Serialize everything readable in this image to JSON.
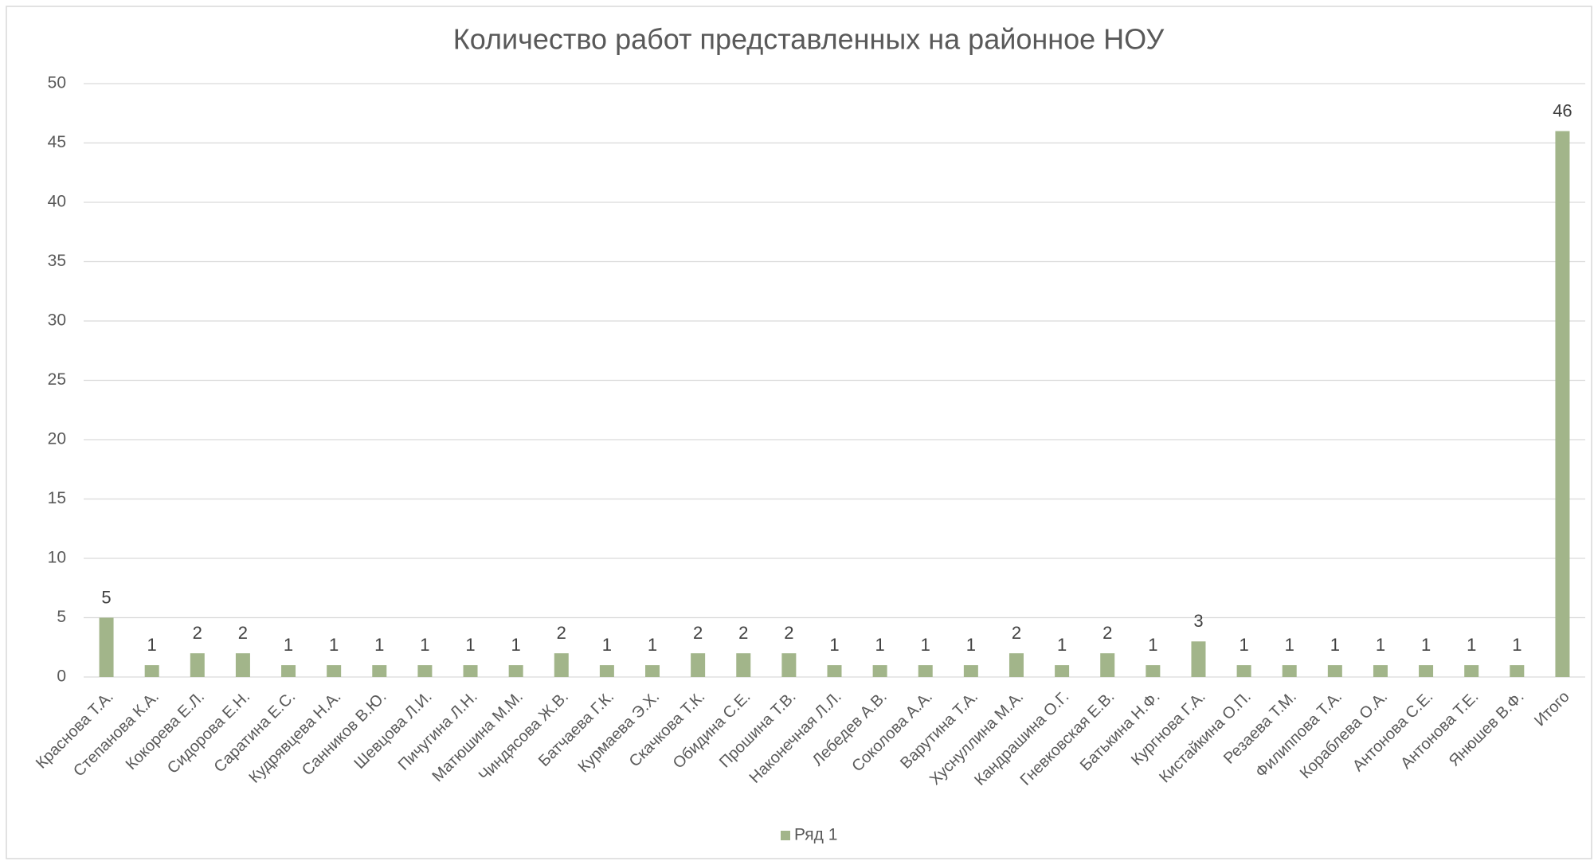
{
  "chart_data": {
    "type": "bar",
    "title": "Количество работ представленных на районное НОУ",
    "categories": [
      "Краснова Т.А.",
      "Степанова К.А.",
      "Кокорева Е.Л.",
      "Сидорова Е.Н.",
      "Саратина Е.С.",
      "Кудрявцева Н.А.",
      "Санников В.Ю.",
      "Шевцова Л.И.",
      "Пичугина Л.Н.",
      "Матюшина М.М.",
      "Чиндясова Ж.В.",
      "Батчаева Г.К.",
      "Курмаева Э.Х.",
      "Скачкова Т.К.",
      "Обидина С.Е.",
      "Прошина Т.В.",
      "Наконечная Л.Л.",
      "Лебедев А.В.",
      "Соколова А.А.",
      "Варутина Т.А.",
      "Хуснуллина М.А.",
      "Кандрашина О.Г.",
      "Гневковская Е.В.",
      "Батькина Н.Ф.",
      "Кургнова Г.А.",
      "Кистайкина О.П.",
      "Резаева Т.М.",
      "Филиппова Т.А.",
      "Кораблева О.А.",
      "Антонова С.Е.",
      "Антонова Т.Е.",
      "Янюшев В.Ф.",
      "Итого"
    ],
    "series": [
      {
        "name": "Ряд 1",
        "color": "#a2b58a",
        "values": [
          5,
          1,
          2,
          2,
          1,
          1,
          1,
          1,
          1,
          1,
          2,
          1,
          1,
          2,
          2,
          2,
          1,
          1,
          1,
          1,
          2,
          1,
          2,
          1,
          3,
          1,
          1,
          1,
          1,
          1,
          1,
          1,
          46
        ]
      }
    ],
    "ylim": [
      0,
      50
    ],
    "yticks": [
      0,
      5,
      10,
      15,
      20,
      25,
      30,
      35,
      40,
      45,
      50
    ],
    "grid": true,
    "legend": "bottom"
  }
}
